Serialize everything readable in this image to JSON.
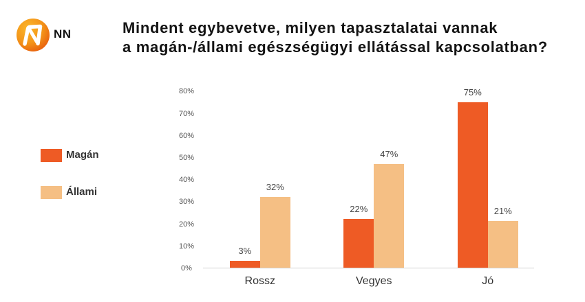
{
  "brand": {
    "logo_text": "NN"
  },
  "header": {
    "title_line1": "Mindent egybevetve, milyen tapasztalatai vannak",
    "title_line2": "a magán-/állami egészségügyi ellátással kapcsolatban?"
  },
  "legend": {
    "items": [
      {
        "label": "Magán",
        "color": "#EE5B25"
      },
      {
        "label": "Állami",
        "color": "#F5BF84"
      }
    ]
  },
  "chart_data": {
    "type": "bar",
    "title": "Mindent egybevetve, milyen tapasztalatai vannak a magán-/állami egészségügyi ellátással kapcsolatban?",
    "xlabel": "",
    "ylabel": "",
    "categories": [
      "Rossz",
      "Vegyes",
      "Jó"
    ],
    "series": [
      {
        "name": "Magán",
        "color": "#EE5B25",
        "values": [
          3,
          22,
          75
        ],
        "labels": [
          "3%",
          "22%",
          "75%"
        ]
      },
      {
        "name": "Állami",
        "color": "#F5BF84",
        "values": [
          32,
          47,
          21
        ],
        "labels": [
          "32%",
          "47%",
          "21%"
        ]
      }
    ],
    "yticks": [
      0,
      10,
      20,
      30,
      40,
      50,
      60,
      70,
      80
    ],
    "ytick_labels": [
      "0%",
      "10%",
      "20%",
      "30%",
      "40%",
      "50%",
      "60%",
      "70%",
      "80%"
    ],
    "ylim": [
      0,
      80
    ],
    "grid": false,
    "legend_position": "left"
  }
}
